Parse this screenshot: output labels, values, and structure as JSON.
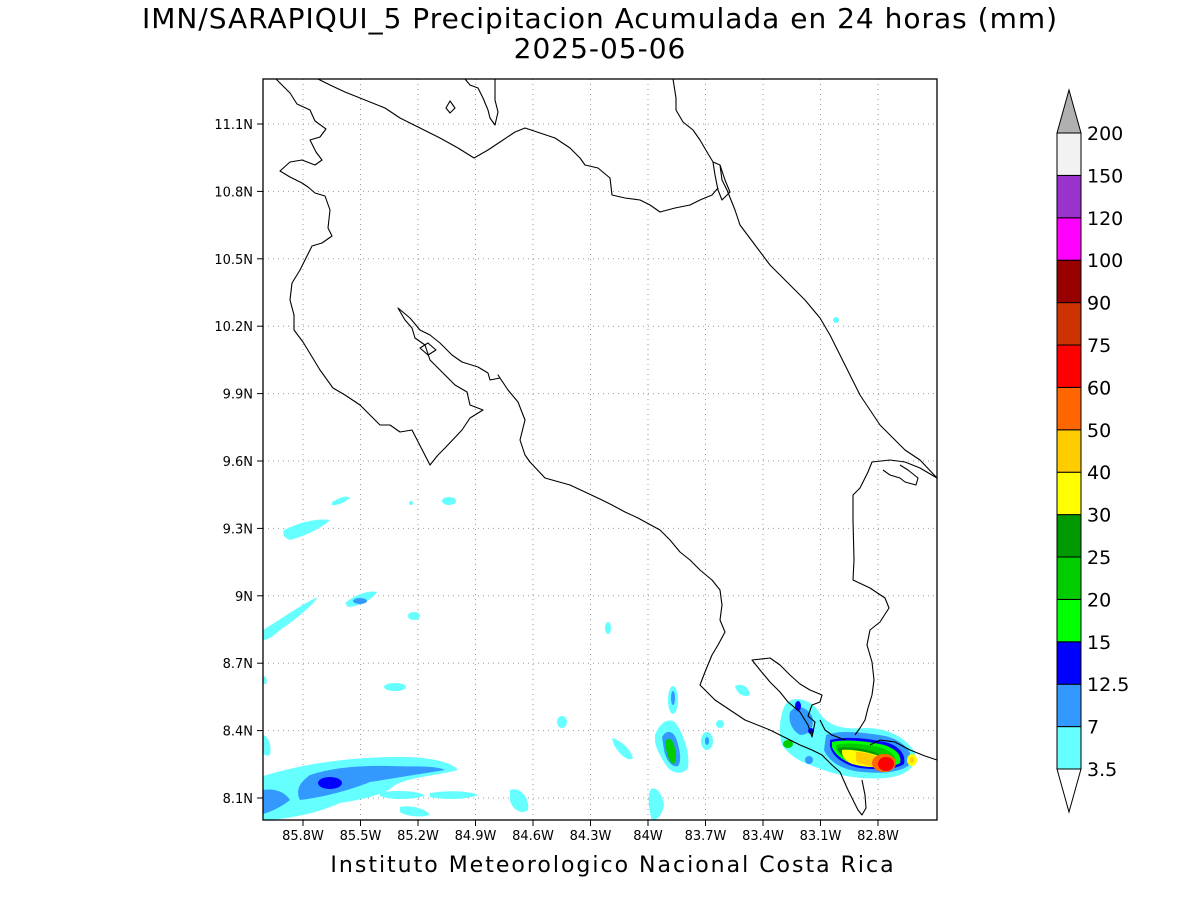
{
  "title": {
    "line1": "IMN/SARAPIQUI_5 Precipitacion Acumulada en 24 horas (mm)",
    "line2": "2025-05-06"
  },
  "credit": "Instituto Meteorologico Nacional Costa Rica",
  "axes": {
    "lat_ticks": [
      "11.1N",
      "10.8N",
      "10.5N",
      "10.2N",
      "9.9N",
      "9.6N",
      "9.3N",
      "9N",
      "8.7N",
      "8.4N",
      "8.1N"
    ],
    "lon_ticks": [
      "85.8W",
      "85.5W",
      "85.2W",
      "84.9W",
      "84.6W",
      "84.3W",
      "84W",
      "83.7W",
      "83.4W",
      "83.1W",
      "82.8W"
    ],
    "grid": true
  },
  "colorbar": {
    "labels": [
      "3.5",
      "7",
      "12.5",
      "15",
      "20",
      "25",
      "30",
      "40",
      "50",
      "60",
      "75",
      "90",
      "100",
      "120",
      "150",
      "200"
    ],
    "colors": [
      "#66ffff",
      "#3399ff",
      "#0000ff",
      "#00ff00",
      "#00cc00",
      "#009900",
      "#ffff00",
      "#ffcc00",
      "#ff6600",
      "#ff0000",
      "#cc3300",
      "#990000",
      "#ff00ff",
      "#9933cc",
      "#f2f2f2",
      "#b0b0b0"
    ]
  }
}
